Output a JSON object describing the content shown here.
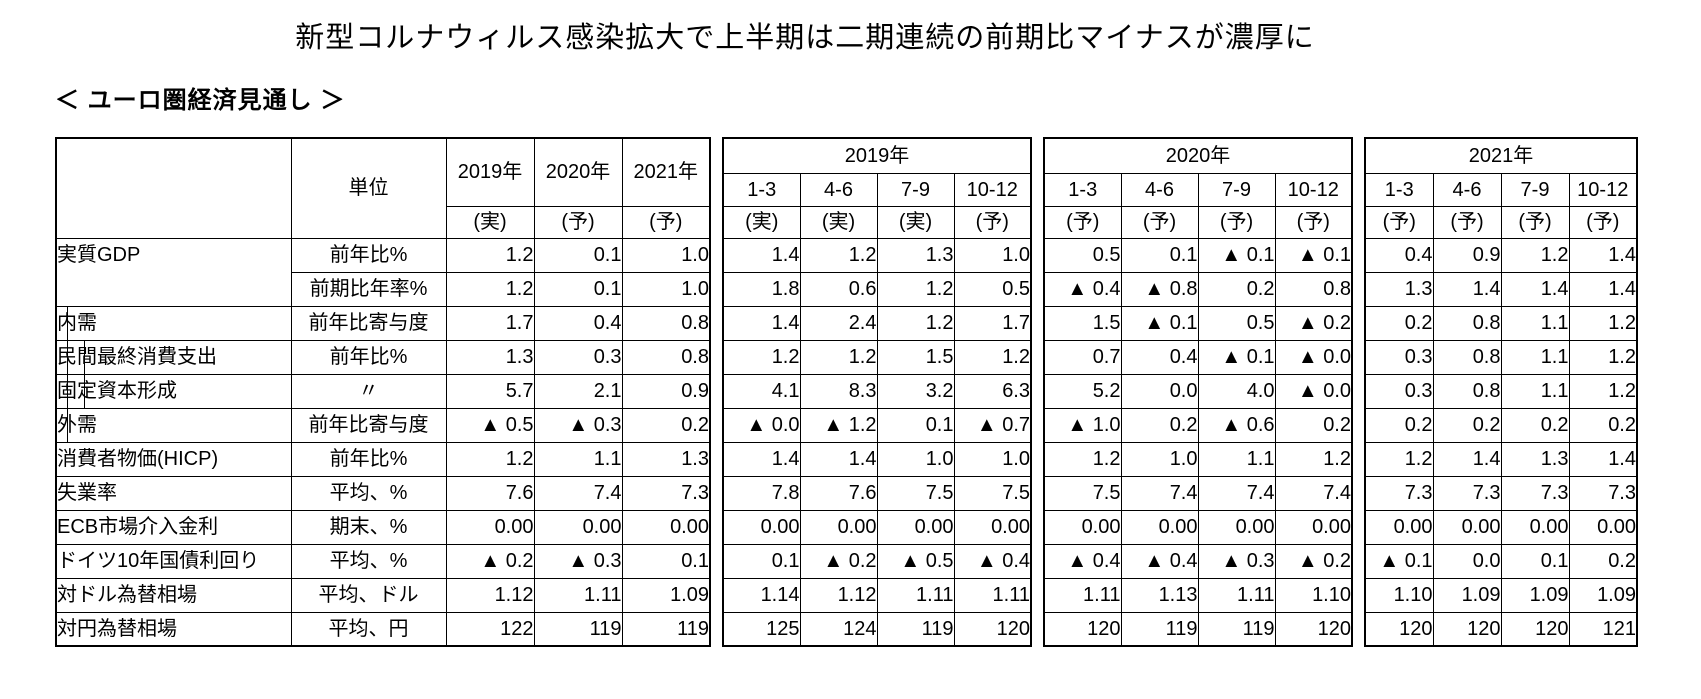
{
  "title": "新型コルナウィルス感染拡大で上半期は二期連続の前期比マイナスが濃厚に",
  "subtitle": "＜ ユーロ圏経済見通し ＞",
  "table": {
    "unit_header": "単位",
    "annual_columns": [
      {
        "year": "2019年",
        "mark": "(実)"
      },
      {
        "year": "2020年",
        "mark": "(予)"
      },
      {
        "year": "2021年",
        "mark": "(予)"
      }
    ],
    "quarter_blocks": [
      {
        "year": "2019年",
        "quarters": [
          "1-3",
          "4-6",
          "7-9",
          "10-12"
        ],
        "marks": [
          "(実)",
          "(実)",
          "(実)",
          "(予)"
        ]
      },
      {
        "year": "2020年",
        "quarters": [
          "1-3",
          "4-6",
          "7-9",
          "10-12"
        ],
        "marks": [
          "(予)",
          "(予)",
          "(予)",
          "(予)"
        ]
      },
      {
        "year": "2021年",
        "quarters": [
          "1-3",
          "4-6",
          "7-9",
          "10-12"
        ],
        "marks": [
          "(予)",
          "(予)",
          "(予)",
          "(予)"
        ]
      }
    ],
    "rows": [
      {
        "label": "実質GDP",
        "rowspan": 2,
        "indent": 0,
        "unit": "前年比%",
        "annual": [
          "1.2",
          "0.1",
          "1.0"
        ],
        "quarters": [
          [
            "1.4",
            "1.2",
            "1.3",
            "1.0"
          ],
          [
            "0.5",
            "0.1",
            "▲ 0.1",
            "▲ 0.1"
          ],
          [
            "0.4",
            "0.9",
            "1.2",
            "1.4"
          ]
        ]
      },
      {
        "label": null,
        "indent": 0,
        "unit": "前期比年率%",
        "annual": [
          "1.2",
          "0.1",
          "1.0"
        ],
        "quarters": [
          [
            "1.8",
            "0.6",
            "1.2",
            "0.5"
          ],
          [
            "▲ 0.4",
            "▲ 0.8",
            "0.2",
            "0.8"
          ],
          [
            "1.3",
            "1.4",
            "1.4",
            "1.4"
          ]
        ]
      },
      {
        "label": "内需",
        "indent": 1,
        "unit": "前年比寄与度",
        "annual": [
          "1.7",
          "0.4",
          "0.8"
        ],
        "quarters": [
          [
            "1.4",
            "2.4",
            "1.2",
            "1.7"
          ],
          [
            "1.5",
            "▲ 0.1",
            "0.5",
            "▲ 0.2"
          ],
          [
            "0.2",
            "0.8",
            "1.1",
            "1.2"
          ]
        ]
      },
      {
        "label": "民間最終消費支出",
        "indent": 2,
        "unit": "前年比%",
        "annual": [
          "1.3",
          "0.3",
          "0.8"
        ],
        "quarters": [
          [
            "1.2",
            "1.2",
            "1.5",
            "1.2"
          ],
          [
            "0.7",
            "0.4",
            "▲ 0.1",
            "▲ 0.0"
          ],
          [
            "0.3",
            "0.8",
            "1.1",
            "1.2"
          ]
        ]
      },
      {
        "label": "固定資本形成",
        "indent": 2,
        "unit": "〃",
        "annual": [
          "5.7",
          "2.1",
          "0.9"
        ],
        "quarters": [
          [
            "4.1",
            "8.3",
            "3.2",
            "6.3"
          ],
          [
            "5.2",
            "0.0",
            "4.0",
            "▲ 0.0"
          ],
          [
            "0.3",
            "0.8",
            "1.1",
            "1.2"
          ]
        ]
      },
      {
        "label": "外需",
        "indent": 1,
        "unit": "前年比寄与度",
        "annual": [
          "▲ 0.5",
          "▲ 0.3",
          "0.2"
        ],
        "quarters": [
          [
            "▲ 0.0",
            "▲ 1.2",
            "0.1",
            "▲ 0.7"
          ],
          [
            "▲ 1.0",
            "0.2",
            "▲ 0.6",
            "0.2"
          ],
          [
            "0.2",
            "0.2",
            "0.2",
            "0.2"
          ]
        ]
      },
      {
        "label": "消費者物価(HICP)",
        "indent": 0,
        "unit": "前年比%",
        "annual": [
          "1.2",
          "1.1",
          "1.3"
        ],
        "quarters": [
          [
            "1.4",
            "1.4",
            "1.0",
            "1.0"
          ],
          [
            "1.2",
            "1.0",
            "1.1",
            "1.2"
          ],
          [
            "1.2",
            "1.4",
            "1.3",
            "1.4"
          ]
        ]
      },
      {
        "label": "失業率",
        "indent": 0,
        "unit": "平均、%",
        "annual": [
          "7.6",
          "7.4",
          "7.3"
        ],
        "quarters": [
          [
            "7.8",
            "7.6",
            "7.5",
            "7.5"
          ],
          [
            "7.5",
            "7.4",
            "7.4",
            "7.4"
          ],
          [
            "7.3",
            "7.3",
            "7.3",
            "7.3"
          ]
        ]
      },
      {
        "label": "ECB市場介入金利",
        "indent": 0,
        "unit": "期末、%",
        "annual": [
          "0.00",
          "0.00",
          "0.00"
        ],
        "quarters": [
          [
            "0.00",
            "0.00",
            "0.00",
            "0.00"
          ],
          [
            "0.00",
            "0.00",
            "0.00",
            "0.00"
          ],
          [
            "0.00",
            "0.00",
            "0.00",
            "0.00"
          ]
        ]
      },
      {
        "label": "ドイツ10年国債利回り",
        "indent": 0,
        "unit": "平均、%",
        "annual": [
          "▲ 0.2",
          "▲ 0.3",
          "0.1"
        ],
        "quarters": [
          [
            "0.1",
            "▲ 0.2",
            "▲ 0.5",
            "▲ 0.4"
          ],
          [
            "▲ 0.4",
            "▲ 0.4",
            "▲ 0.3",
            "▲ 0.2"
          ],
          [
            "▲ 0.1",
            "0.0",
            "0.1",
            "0.2"
          ]
        ]
      },
      {
        "label": "対ドル為替相場",
        "indent": 0,
        "unit": "平均、ドル",
        "annual": [
          "1.12",
          "1.11",
          "1.09"
        ],
        "quarters": [
          [
            "1.14",
            "1.12",
            "1.11",
            "1.11"
          ],
          [
            "1.11",
            "1.13",
            "1.11",
            "1.10"
          ],
          [
            "1.10",
            "1.09",
            "1.09",
            "1.09"
          ]
        ]
      },
      {
        "label": "対円為替相場",
        "indent": 0,
        "unit": "平均、円",
        "annual": [
          "122",
          "119",
          "119"
        ],
        "quarters": [
          [
            "125",
            "124",
            "119",
            "120"
          ],
          [
            "120",
            "119",
            "119",
            "120"
          ],
          [
            "120",
            "120",
            "120",
            "121"
          ]
        ]
      }
    ]
  }
}
